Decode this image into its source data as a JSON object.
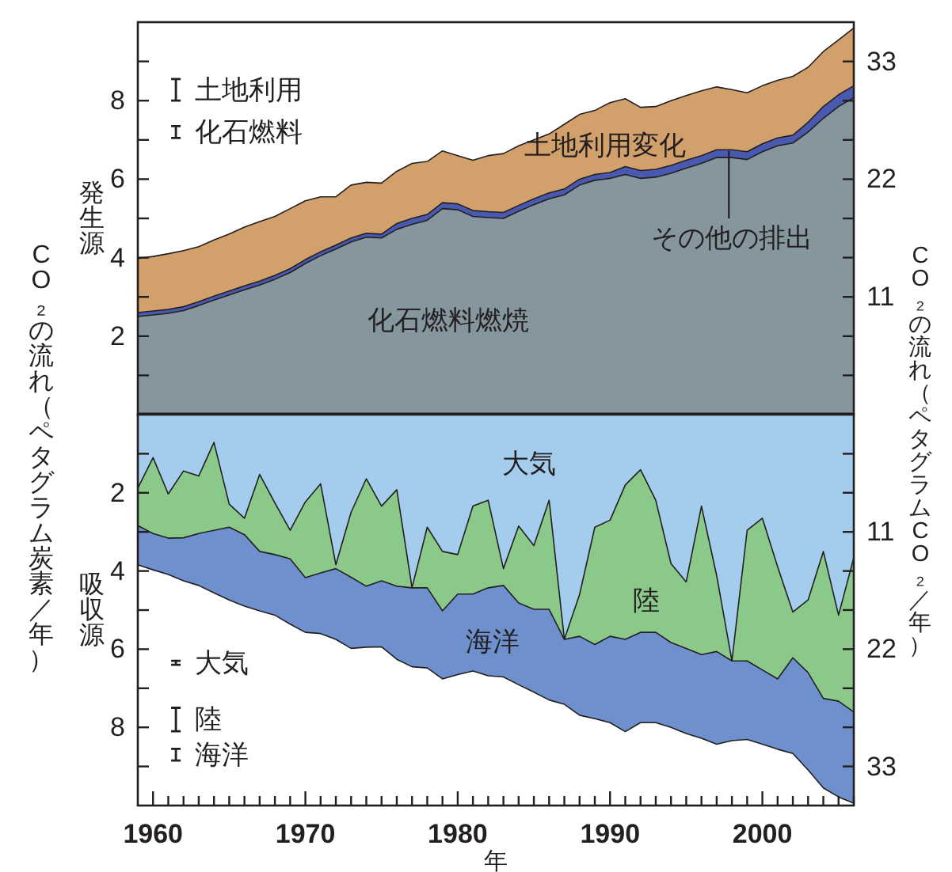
{
  "chart_data": [
    {
      "type": "area",
      "stacked": true,
      "ylabel": "発生源",
      "y2label": "CO₂の流れ（ペタグラムCO₂／年）",
      "annotations": [
        "CO₂の流れ（ペタグラム炭素／年）",
        "土地利用",
        "化石燃料"
      ],
      "x": [
        1959,
        1960,
        1961,
        1962,
        1963,
        1964,
        1965,
        1966,
        1967,
        1968,
        1969,
        1970,
        1971,
        1972,
        1973,
        1974,
        1975,
        1976,
        1977,
        1978,
        1979,
        1980,
        1981,
        1982,
        1983,
        1984,
        1985,
        1986,
        1987,
        1988,
        1989,
        1990,
        1991,
        1992,
        1993,
        1994,
        1995,
        1996,
        1997,
        1998,
        1999,
        2000,
        2001,
        2002,
        2003,
        2004,
        2005,
        2006
      ],
      "xlim": [
        1959,
        2006
      ],
      "ylim": [
        0,
        10
      ],
      "yticks": [
        {
          "value": 1,
          "label": null
        },
        2,
        {
          "value": 3,
          "label": null
        },
        4,
        {
          "value": 5,
          "label": null
        },
        6,
        {
          "value": 7,
          "label": null
        },
        8,
        {
          "value": 9,
          "label": null
        }
      ],
      "y2lim": [
        0,
        36.67
      ],
      "y2ticks": [
        {
          "value": 3.67,
          "label": null
        },
        {
          "value": 7.33,
          "label": null
        },
        11,
        {
          "value": 14.67,
          "label": null
        },
        {
          "value": 18.33,
          "label": null
        },
        22,
        {
          "value": 25.67,
          "label": null
        },
        {
          "value": 29.33,
          "label": null
        },
        33
      ],
      "tick_labels": "y",
      "series": [
        {
          "name": "化石燃料燃焼",
          "color": "#85969f",
          "values": [
            2.5,
            2.54,
            2.58,
            2.65,
            2.78,
            2.92,
            3.05,
            3.18,
            3.3,
            3.45,
            3.62,
            3.85,
            4.05,
            4.22,
            4.4,
            4.52,
            4.5,
            4.72,
            4.85,
            4.95,
            5.25,
            5.22,
            5.05,
            5.02,
            5.0,
            5.18,
            5.35,
            5.5,
            5.6,
            5.85,
            5.97,
            6.02,
            6.12,
            6.02,
            6.05,
            6.15,
            6.28,
            6.4,
            6.55,
            6.55,
            6.5,
            6.7,
            6.85,
            6.92,
            7.2,
            7.55,
            7.85,
            8.08
          ]
        },
        {
          "name": "その他の排出",
          "color": "#4a59b0",
          "values": [
            0.1,
            0.1,
            0.1,
            0.1,
            0.1,
            0.1,
            0.1,
            0.1,
            0.1,
            0.1,
            0.1,
            0.1,
            0.1,
            0.1,
            0.1,
            0.1,
            0.1,
            0.15,
            0.15,
            0.15,
            0.15,
            0.15,
            0.15,
            0.15,
            0.15,
            0.15,
            0.15,
            0.15,
            0.15,
            0.15,
            0.15,
            0.15,
            0.2,
            0.2,
            0.2,
            0.2,
            0.2,
            0.2,
            0.2,
            0.2,
            0.2,
            0.2,
            0.2,
            0.2,
            0.25,
            0.3,
            0.3,
            0.3
          ]
        },
        {
          "name": "土地利用変化",
          "color": "#d2a06a",
          "values": [
            1.38,
            1.39,
            1.42,
            1.43,
            1.4,
            1.43,
            1.45,
            1.5,
            1.52,
            1.5,
            1.53,
            1.5,
            1.4,
            1.23,
            1.35,
            1.3,
            1.3,
            1.33,
            1.4,
            1.35,
            1.32,
            1.23,
            1.28,
            1.43,
            1.5,
            1.52,
            1.5,
            1.5,
            1.65,
            1.65,
            1.63,
            1.78,
            1.73,
            1.61,
            1.6,
            1.65,
            1.65,
            1.65,
            1.6,
            1.53,
            1.5,
            1.48,
            1.47,
            1.5,
            1.4,
            1.4,
            1.4,
            1.47
          ]
        }
      ]
    },
    {
      "type": "area",
      "stacked": true,
      "ylabel": "吸収源",
      "xlabel": "年",
      "annotations": [
        "大気",
        "陸",
        "海洋"
      ],
      "x": [
        1959,
        1960,
        1961,
        1962,
        1963,
        1964,
        1965,
        1966,
        1967,
        1968,
        1969,
        1970,
        1971,
        1972,
        1973,
        1974,
        1975,
        1976,
        1977,
        1978,
        1979,
        1980,
        1981,
        1982,
        1983,
        1984,
        1985,
        1986,
        1987,
        1988,
        1989,
        1990,
        1991,
        1992,
        1993,
        1994,
        1995,
        1996,
        1997,
        1998,
        1999,
        2000,
        2001,
        2002,
        2003,
        2004,
        2005,
        2006
      ],
      "xlim": [
        1959,
        2006
      ],
      "ylim": [
        10,
        0
      ],
      "xticks": [
        1960,
        {
          "value": 1961,
          "label": null
        },
        {
          "value": 1962,
          "label": null
        },
        {
          "value": 1963,
          "label": null
        },
        {
          "value": 1964,
          "label": null
        },
        {
          "value": 1965,
          "label": null
        },
        {
          "value": 1966,
          "label": null
        },
        {
          "value": 1967,
          "label": null
        },
        {
          "value": 1968,
          "label": null
        },
        {
          "value": 1969,
          "label": null
        },
        1970,
        {
          "value": 1971,
          "label": null
        },
        {
          "value": 1972,
          "label": null
        },
        {
          "value": 1973,
          "label": null
        },
        {
          "value": 1974,
          "label": null
        },
        {
          "value": 1975,
          "label": null
        },
        {
          "value": 1976,
          "label": null
        },
        {
          "value": 1977,
          "label": null
        },
        {
          "value": 1978,
          "label": null
        },
        {
          "value": 1979,
          "label": null
        },
        1980,
        {
          "value": 1981,
          "label": null
        },
        {
          "value": 1982,
          "label": null
        },
        {
          "value": 1983,
          "label": null
        },
        {
          "value": 1984,
          "label": null
        },
        {
          "value": 1985,
          "label": null
        },
        {
          "value": 1986,
          "label": null
        },
        {
          "value": 1987,
          "label": null
        },
        {
          "value": 1988,
          "label": null
        },
        {
          "value": 1989,
          "label": null
        },
        1990,
        {
          "value": 1991,
          "label": null
        },
        {
          "value": 1992,
          "label": null
        },
        {
          "value": 1993,
          "label": null
        },
        {
          "value": 1994,
          "label": null
        },
        {
          "value": 1995,
          "label": null
        },
        {
          "value": 1996,
          "label": null
        },
        {
          "value": 1997,
          "label": null
        },
        {
          "value": 1998,
          "label": null
        },
        {
          "value": 1999,
          "label": null
        },
        2000,
        {
          "value": 2001,
          "label": null
        },
        {
          "value": 2002,
          "label": null
        },
        {
          "value": 2003,
          "label": null
        },
        {
          "value": 2004,
          "label": null
        },
        {
          "value": 2005,
          "label": null
        },
        {
          "value": 2006,
          "label": null
        }
      ],
      "yticks": [
        {
          "value": 1,
          "label": null
        },
        2,
        {
          "value": 3,
          "label": null
        },
        4,
        {
          "value": 5,
          "label": null
        },
        6,
        {
          "value": 7,
          "label": null
        },
        8,
        {
          "value": 9,
          "label": null
        }
      ],
      "y2lim": [
        36.67,
        0
      ],
      "y2ticks": [
        {
          "value": 3.67,
          "label": null
        },
        {
          "value": 7.33,
          "label": null
        },
        11,
        {
          "value": 14.67,
          "label": null
        },
        {
          "value": 18.33,
          "label": null
        },
        22,
        {
          "value": 25.67,
          "label": null
        },
        {
          "value": 29.33,
          "label": null
        },
        33
      ],
      "series": [
        {
          "name": "大気",
          "color": "#a3cced",
          "values": [
            1.88,
            1.1,
            2.03,
            1.44,
            1.57,
            0.71,
            2.29,
            2.65,
            1.53,
            2.26,
            2.96,
            2.23,
            1.77,
            3.84,
            2.5,
            1.64,
            2.34,
            1.92,
            4.43,
            2.88,
            3.5,
            3.58,
            2.34,
            2.19,
            3.94,
            2.85,
            3.35,
            2.19,
            5.75,
            4.6,
            2.88,
            2.7,
            1.8,
            1.41,
            2.19,
            3.81,
            4.28,
            2.34,
            4.12,
            6.3,
            2.96,
            2.65,
            3.89,
            5.05,
            4.74,
            3.5,
            5.13,
            3.66
          ]
        },
        {
          "name": "陸",
          "color": "#8bc98a",
          "values": [
            0.96,
            1.94,
            1.13,
            1.71,
            1.47,
            2.25,
            0.59,
            0.42,
            1.97,
            1.32,
            0.73,
            1.94,
            2.28,
            0.1,
            1.66,
            2.75,
            1.91,
            2.47,
            0,
            1.55,
            1.52,
            1.01,
            2.25,
            2.24,
            0.43,
            1.97,
            1.63,
            2.79,
            0,
            1.07,
            3.0,
            2.97,
            3.95,
            4.16,
            3.38,
            2.02,
            1.7,
            3.8,
            1.94,
            0,
            3.34,
            3.88,
            2.87,
            1.17,
            1.86,
            3.76,
            2.2,
            3.95
          ]
        },
        {
          "name": "海洋",
          "color": "#6e91cd",
          "values": [
            1.0,
            0.93,
            0.93,
            1.1,
            1.33,
            1.6,
            1.86,
            1.83,
            1.52,
            1.55,
            1.67,
            1.4,
            1.55,
            1.81,
            1.82,
            1.56,
            1.69,
            1.87,
            2.02,
            2.05,
            1.74,
            2.06,
            1.97,
            2.25,
            2.34,
            2.09,
            2.12,
            2.32,
            1.66,
            2.02,
            1.9,
            2.21,
            2.36,
            2.31,
            2.31,
            2.17,
            2.18,
            2.14,
            2.37,
            2.04,
            2.01,
            1.9,
            1.8,
            2.45,
            2.49,
            2.29,
            2.45,
            2.33
          ]
        }
      ]
    }
  ]
}
